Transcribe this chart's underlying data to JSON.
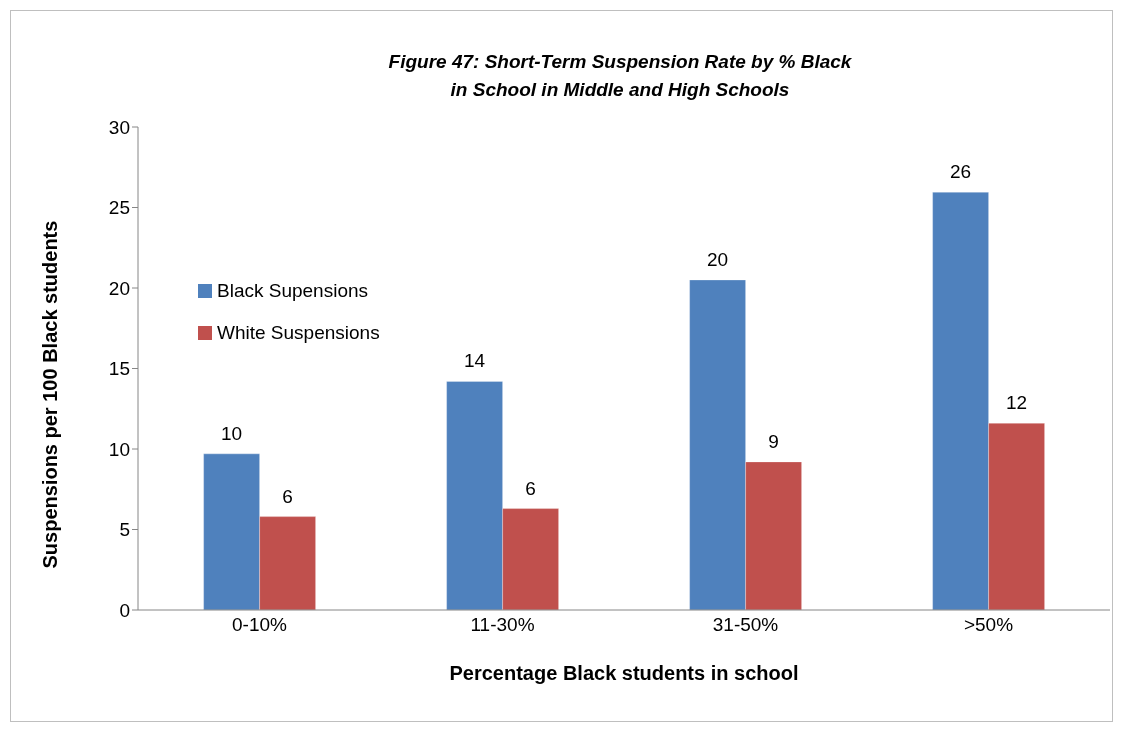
{
  "chart_data": {
    "type": "bar",
    "title": "Figure 47:  Short-Term Suspension Rate by % Black\nin School in Middle and High Schools",
    "xlabel": "Percentage Black students in school",
    "ylabel": "Suspensions per 100 Black students",
    "categories": [
      "0-10%",
      "11-30%",
      "31-50%",
      ">50%"
    ],
    "series": [
      {
        "name": "Black Supensions",
        "color": "#4f81bd",
        "values": [
          9.7,
          14.2,
          20.5,
          25.95
        ],
        "value_labels": [
          "10",
          "14",
          "20",
          "26"
        ]
      },
      {
        "name": "White Suspensions",
        "color": "#c0504d",
        "values": [
          5.8,
          6.3,
          9.2,
          11.6
        ],
        "value_labels": [
          "6",
          "6",
          "9",
          "12"
        ]
      }
    ],
    "ylim": [
      0,
      30
    ],
    "yticks": [
      0,
      5,
      10,
      15,
      20,
      25,
      30
    ],
    "grid": false,
    "legend": "left"
  }
}
